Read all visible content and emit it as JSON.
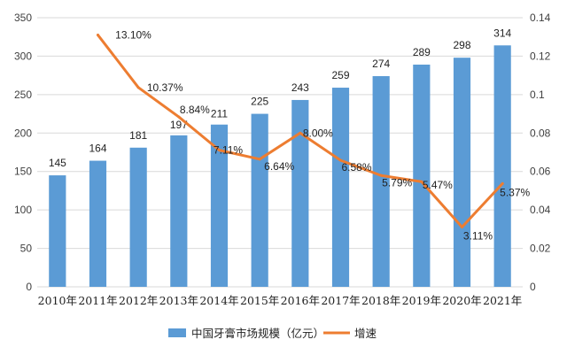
{
  "chart_data": {
    "type": "bar",
    "categories": [
      "2010年",
      "2011年",
      "2012年",
      "2013年",
      "2014年",
      "2015年",
      "2016年",
      "2017年",
      "2018年",
      "2019年",
      "2020年",
      "2021年"
    ],
    "series": [
      {
        "name": "中国牙膏市场规模（亿元）",
        "type": "bar",
        "axis": "left",
        "color": "#5b9bd5",
        "values": [
          145,
          164,
          181,
          197,
          211,
          225,
          243,
          259,
          274,
          289,
          298,
          314
        ],
        "labels": [
          "145",
          "164",
          "181",
          "197",
          "211",
          "225",
          "243",
          "259",
          "274",
          "289",
          "298",
          "314"
        ]
      },
      {
        "name": "增速",
        "type": "line",
        "axis": "right",
        "color": "#ed7d31",
        "values": [
          null,
          0.131,
          0.1037,
          0.0884,
          0.0711,
          0.0664,
          0.08,
          0.0658,
          0.0579,
          0.0547,
          0.0311,
          0.0537
        ],
        "labels": [
          "",
          "13.10%",
          "10.37%",
          "8.84%",
          "7.11%",
          "6.64%",
          "8.00%",
          "6.58%",
          "5.79%",
          "5.47%",
          "3.11%",
          "5.37%"
        ]
      }
    ],
    "left_axis": {
      "ylim": [
        0,
        350
      ],
      "ticks": [
        0,
        50,
        100,
        150,
        200,
        250,
        300,
        350
      ],
      "tick_labels": [
        "0",
        "50",
        "100",
        "150",
        "200",
        "250",
        "300",
        "350"
      ]
    },
    "right_axis": {
      "ylim": [
        0,
        0.14
      ],
      "ticks": [
        0,
        0.02,
        0.04,
        0.06,
        0.08,
        0.1,
        0.12,
        0.14
      ],
      "tick_labels": [
        "0",
        "0.02",
        "0.04",
        "0.06",
        "0.08",
        "0.1",
        "0.12",
        "0.14"
      ]
    },
    "grid": true,
    "legend_position": "bottom"
  }
}
